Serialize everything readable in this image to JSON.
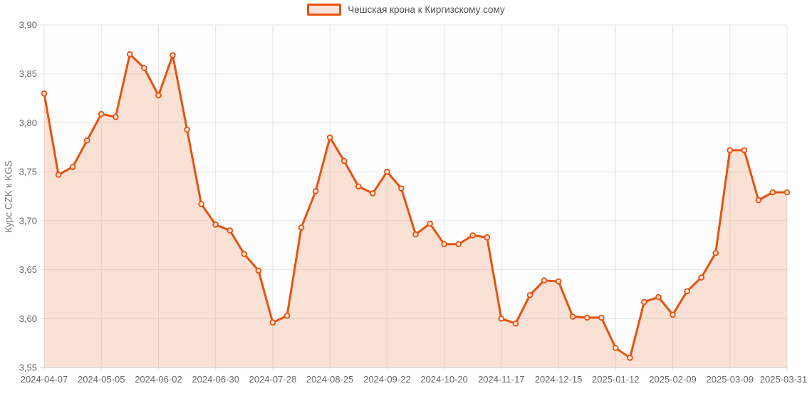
{
  "legend": {
    "label": "Чешская крона к Киргизскому сому"
  },
  "y_axis": {
    "title": "Курс CZK к KGS",
    "ticks": [
      {
        "value": 3.9,
        "label": "3,90"
      },
      {
        "value": 3.85,
        "label": "3,85"
      },
      {
        "value": 3.8,
        "label": "3,80"
      },
      {
        "value": 3.75,
        "label": "3,75"
      },
      {
        "value": 3.7,
        "label": "3,70"
      },
      {
        "value": 3.65,
        "label": "3,65"
      },
      {
        "value": 3.6,
        "label": "3,60"
      },
      {
        "value": 3.55,
        "label": "3,55"
      }
    ]
  },
  "x_axis": {
    "ticks": [
      {
        "index": 0,
        "label": "2024-04-07"
      },
      {
        "index": 4,
        "label": "2024-05-05"
      },
      {
        "index": 8,
        "label": "2024-06-02"
      },
      {
        "index": 12,
        "label": "2024-06-30"
      },
      {
        "index": 16,
        "label": "2024-07-28"
      },
      {
        "index": 20,
        "label": "2024-08-25"
      },
      {
        "index": 24,
        "label": "2024-09-22"
      },
      {
        "index": 28,
        "label": "2024-10-20"
      },
      {
        "index": 32,
        "label": "2024-11-17"
      },
      {
        "index": 36,
        "label": "2024-12-15"
      },
      {
        "index": 40,
        "label": "2025-01-12"
      },
      {
        "index": 44,
        "label": "2025-02-09"
      },
      {
        "index": 48,
        "label": "2025-03-09"
      },
      {
        "index": 52,
        "label": "2025-03-31"
      }
    ]
  },
  "chart_data": {
    "type": "area",
    "title": "",
    "legend_position": "top-center",
    "grid": true,
    "ylabel": "Курс CZK к KGS",
    "xlabel": "",
    "ylim": [
      3.55,
      3.9
    ],
    "x": [
      "2024-04-07",
      "2024-04-14",
      "2024-04-21",
      "2024-04-28",
      "2024-05-05",
      "2024-05-12",
      "2024-05-19",
      "2024-05-26",
      "2024-06-02",
      "2024-06-09",
      "2024-06-16",
      "2024-06-23",
      "2024-06-30",
      "2024-07-07",
      "2024-07-14",
      "2024-07-21",
      "2024-07-28",
      "2024-08-04",
      "2024-08-11",
      "2024-08-18",
      "2024-08-25",
      "2024-09-01",
      "2024-09-08",
      "2024-09-15",
      "2024-09-22",
      "2024-09-29",
      "2024-10-06",
      "2024-10-13",
      "2024-10-20",
      "2024-10-27",
      "2024-11-03",
      "2024-11-10",
      "2024-11-17",
      "2024-11-24",
      "2024-12-01",
      "2024-12-08",
      "2024-12-15",
      "2024-12-22",
      "2024-12-29",
      "2025-01-05",
      "2025-01-12",
      "2025-01-19",
      "2025-01-26",
      "2025-02-02",
      "2025-02-09",
      "2025-02-16",
      "2025-02-23",
      "2025-03-02",
      "2025-03-09",
      "2025-03-16",
      "2025-03-23",
      "2025-03-30",
      "2025-03-31"
    ],
    "series": [
      {
        "name": "Чешская крона к Киргизскому сому",
        "values": [
          3.83,
          3.747,
          3.755,
          3.782,
          3.809,
          3.806,
          3.87,
          3.856,
          3.828,
          3.869,
          3.793,
          3.717,
          3.696,
          3.69,
          3.666,
          3.649,
          3.596,
          3.603,
          3.693,
          3.73,
          3.785,
          3.761,
          3.735,
          3.728,
          3.75,
          3.733,
          3.686,
          3.697,
          3.676,
          3.676,
          3.685,
          3.683,
          3.6,
          3.595,
          3.624,
          3.639,
          3.638,
          3.602,
          3.601,
          3.601,
          3.57,
          3.56,
          3.617,
          3.622,
          3.604,
          3.628,
          3.642,
          3.667,
          3.772,
          3.772,
          3.721,
          3.729,
          3.729
        ]
      }
    ],
    "colors": {
      "line": "#e8520e",
      "fill_opacity": 0.16,
      "marker_fill": "#fbe2d4",
      "grid": "#e4e4e4",
      "axis": "#c9c9c9",
      "tick_text": "#666666",
      "legend_text": "#555555",
      "fill_light": "#fae3d8"
    }
  }
}
